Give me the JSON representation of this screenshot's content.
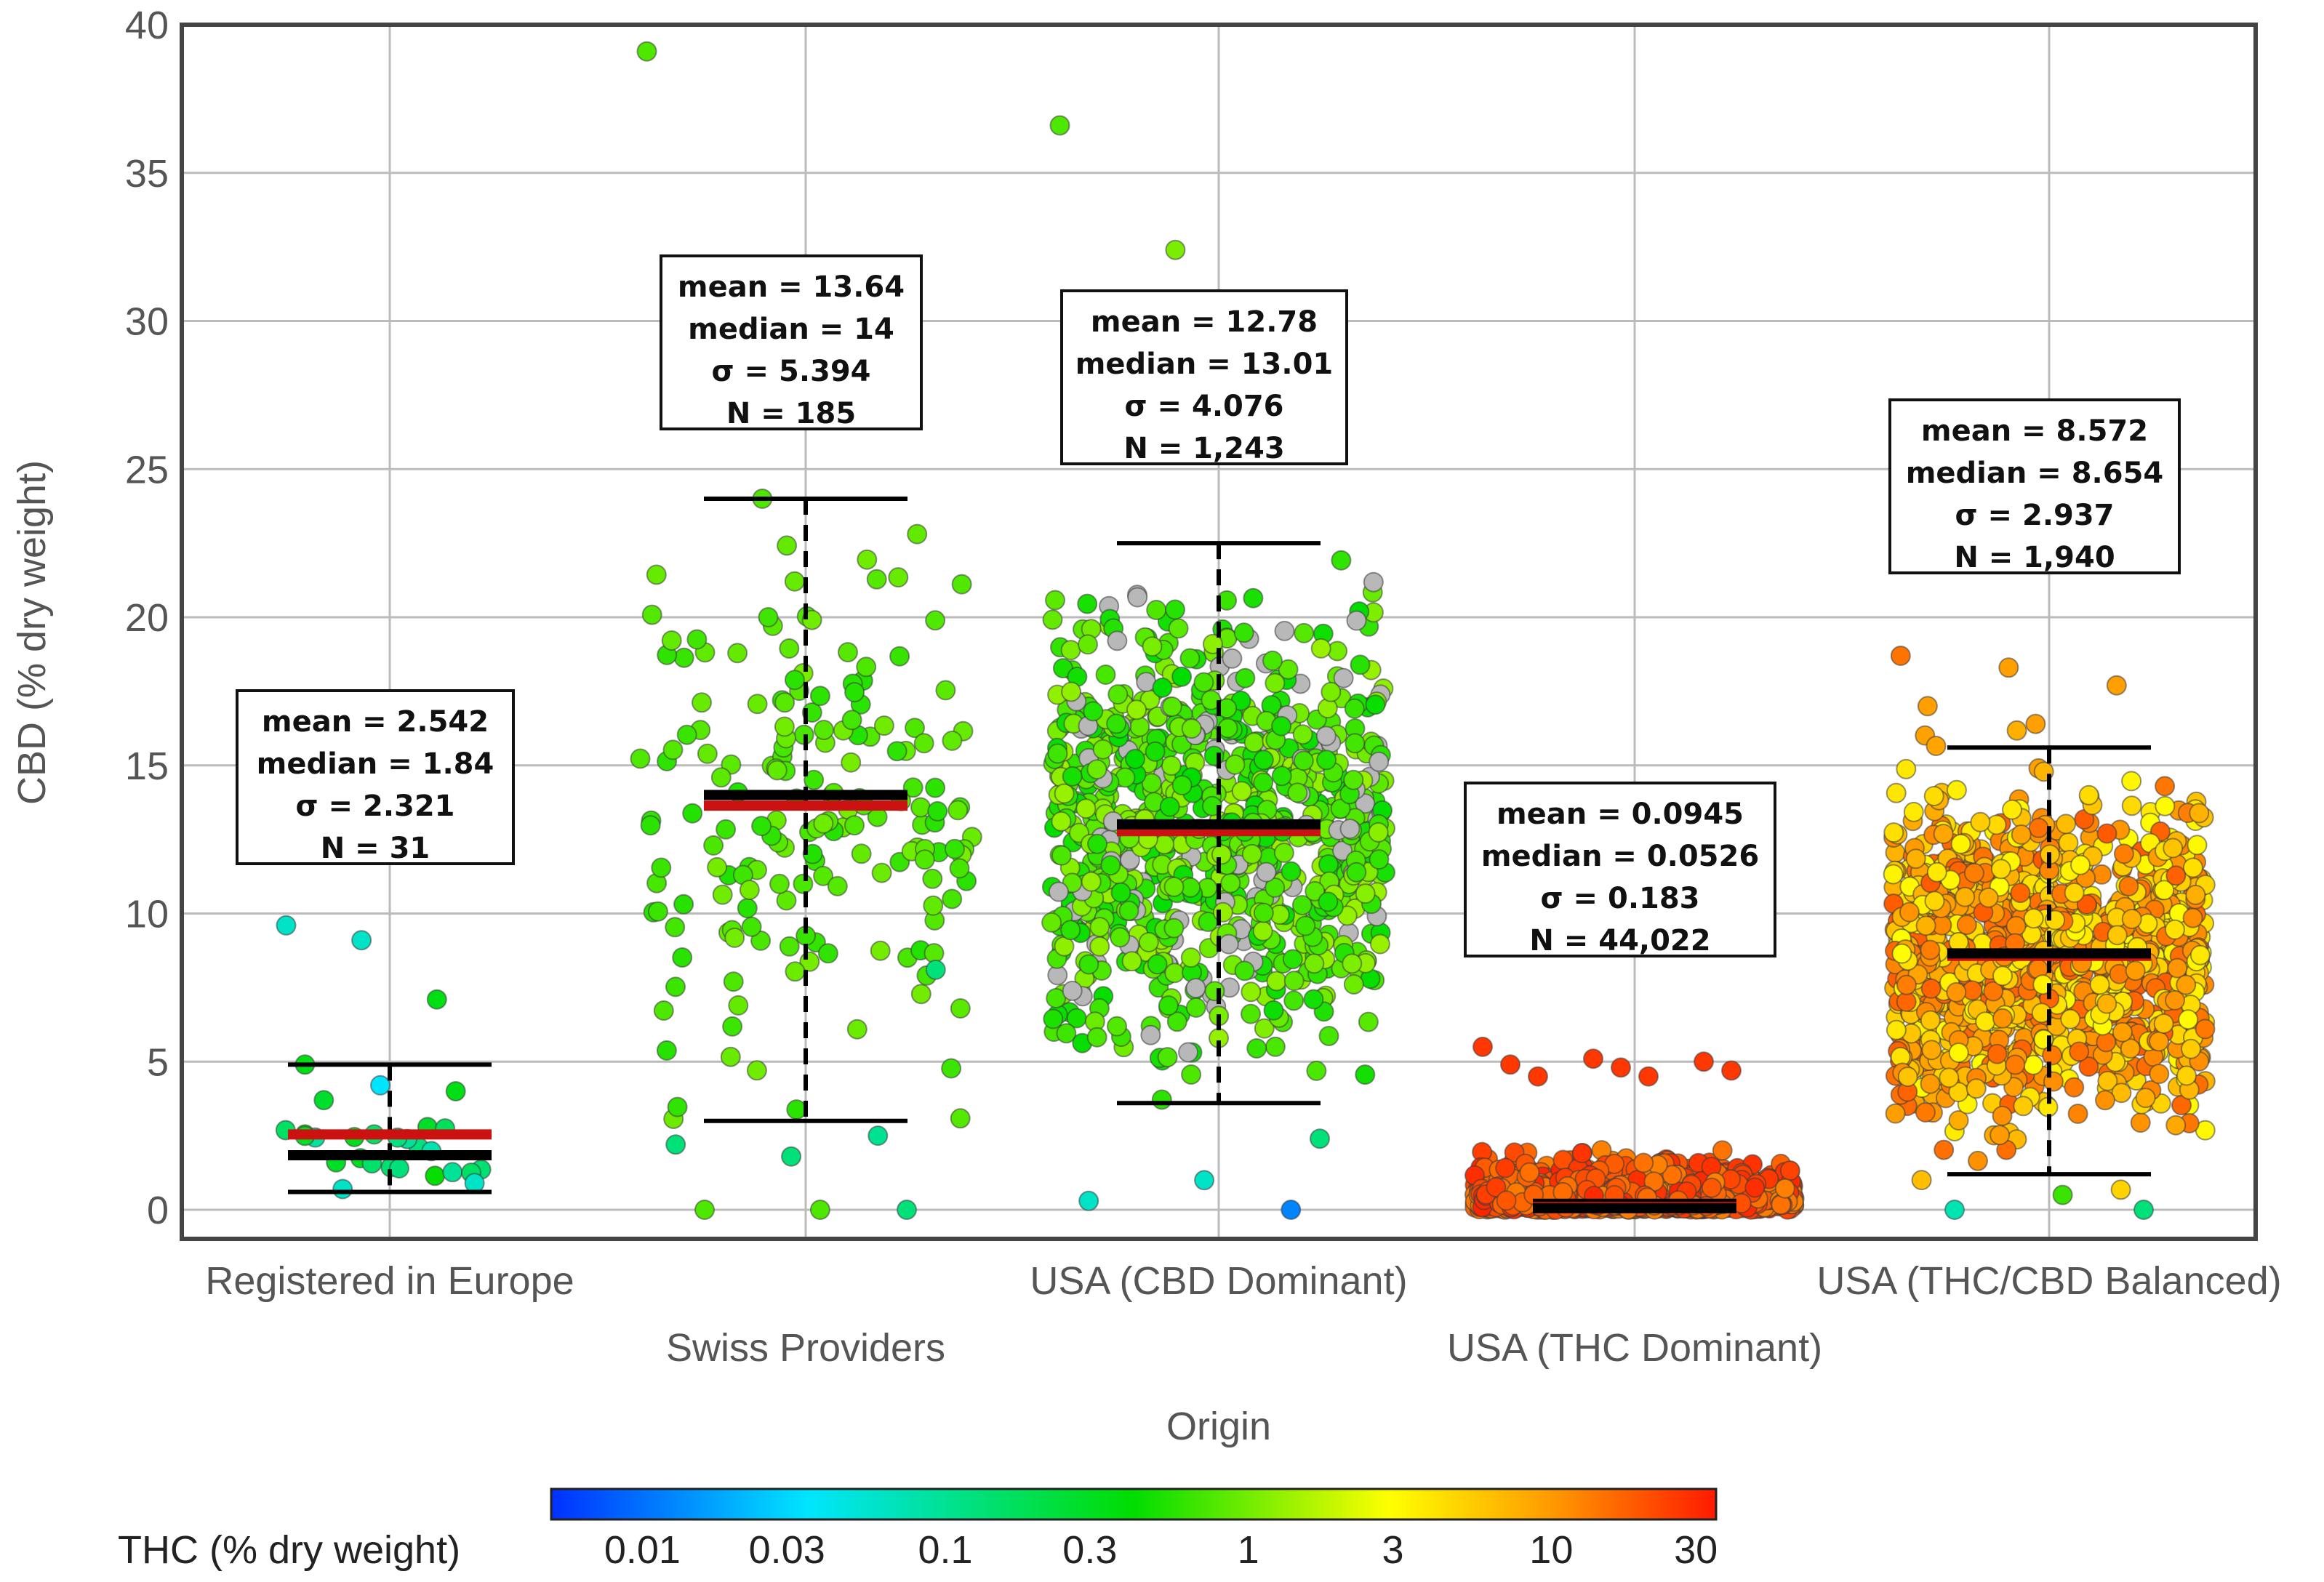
{
  "chart_data": {
    "type": "scatter",
    "subtype": "jittered-strip-plot-with-mean-median-and-whiskers",
    "xlabel": "Origin",
    "ylabel": "CBD (% dry weight)",
    "ylim": [
      0,
      40
    ],
    "yticks": [
      0,
      5,
      10,
      15,
      20,
      25,
      30,
      35,
      40
    ],
    "grid": true,
    "colorbar": {
      "label": "THC (% dry weight)",
      "scale": "log",
      "ticks": [
        "0.01",
        "0.03",
        "0.1",
        "0.3",
        "1",
        "3",
        "10",
        "30"
      ],
      "tick_values": [
        0.01,
        0.03,
        0.1,
        0.3,
        1,
        3,
        10,
        30
      ],
      "range": [
        0.005,
        35
      ],
      "colors": [
        "#0040ff",
        "#00e5ff",
        "#00e000",
        "#ffff00",
        "#ff8c00",
        "#ff0000"
      ]
    },
    "groups": [
      {
        "name": "Registered in Europe",
        "mean": 2.542,
        "median": 1.84,
        "sigma": 2.321,
        "n": 31,
        "whisker_low": 0.6,
        "whisker_high": 4.9,
        "stats": {
          "mean": "mean = 2.542",
          "median": "median = 1.84",
          "sigma": "σ = 2.321",
          "n": "N = 31"
        },
        "outliers": [
          {
            "cbd": 9.6,
            "thc": 0.05
          },
          {
            "cbd": 9.1,
            "thc": 0.05
          },
          {
            "cbd": 7.1,
            "thc": 0.25
          },
          {
            "cbd": 4.9,
            "thc": 0.25
          },
          {
            "cbd": 4.2,
            "thc": 0.03
          },
          {
            "cbd": 4.0,
            "thc": 0.25
          },
          {
            "cbd": 3.7,
            "thc": 0.2
          },
          {
            "cbd": 1.4,
            "thc": 0.1
          },
          {
            "cbd": 0.9,
            "thc": 0.05
          },
          {
            "cbd": 0.7,
            "thc": 0.05
          }
        ],
        "cloud": {
          "count": 20,
          "y_range": [
            0.8,
            2.8
          ],
          "thc_range": [
            0.05,
            0.4
          ]
        }
      },
      {
        "name": "Swiss Providers",
        "mean": 13.64,
        "median": 14,
        "sigma": 5.394,
        "n": 185,
        "whisker_low": 3.0,
        "whisker_high": 24.0,
        "stats": {
          "mean": "mean = 13.64",
          "median": "median = 14",
          "sigma": "σ = 5.394",
          "n": "N = 185"
        },
        "outliers": [
          {
            "cbd": 39.1,
            "thc": 0.6
          },
          {
            "cbd": 24.0,
            "thc": 0.6
          },
          {
            "cbd": 2.5,
            "thc": 0.08
          },
          {
            "cbd": 2.2,
            "thc": 0.1
          },
          {
            "cbd": 1.8,
            "thc": 0.1
          },
          {
            "cbd": 0.0,
            "thc": 0.1
          },
          {
            "cbd": 0.0,
            "thc": 0.6
          },
          {
            "cbd": 0.0,
            "thc": 0.6
          },
          {
            "cbd": 8.1,
            "thc": 0.1
          },
          {
            "cbd": 7.7,
            "thc": 0.6
          }
        ],
        "cloud": {
          "count": 175,
          "y_range": [
            3.0,
            23.0
          ],
          "thc_range": [
            0.4,
            0.9
          ]
        }
      },
      {
        "name": "USA (CBD Dominant)",
        "mean": 12.78,
        "median": 13.01,
        "sigma": 4.076,
        "n": "1,243",
        "whisker_low": 3.6,
        "whisker_high": 22.5,
        "stats": {
          "mean": "mean = 12.78",
          "median": "median = 13.01",
          "sigma": "σ = 4.076",
          "n": "N = 1,243"
        },
        "outliers": [
          {
            "cbd": 36.6,
            "thc": 0.6
          },
          {
            "cbd": 32.4,
            "thc": 0.9
          },
          {
            "cbd": 0.0,
            "thc": 0.012
          },
          {
            "cbd": 0.3,
            "thc": 0.05
          },
          {
            "cbd": 1.0,
            "thc": 0.05
          },
          {
            "cbd": 2.4,
            "thc": 0.1
          }
        ],
        "cloud": {
          "count": 900,
          "y_range": [
            0.2,
            22.0
          ],
          "thc_range": [
            0.3,
            1.2
          ]
        }
      },
      {
        "name": "USA (THC Dominant)",
        "mean": 0.0945,
        "median": 0.0526,
        "sigma": 0.183,
        "n": "44,022",
        "whisker_low": 0.0,
        "whisker_high": 0.3,
        "stats": {
          "mean": "mean = 0.0945",
          "median": "median = 0.0526",
          "sigma": "σ = 0.183",
          "n": "N = 44,022"
        },
        "outliers": [
          {
            "cbd": 5.5,
            "thc": 25
          },
          {
            "cbd": 5.1,
            "thc": 25
          },
          {
            "cbd": 5.0,
            "thc": 25
          },
          {
            "cbd": 4.9,
            "thc": 25
          },
          {
            "cbd": 4.8,
            "thc": 25
          },
          {
            "cbd": 4.7,
            "thc": 25
          },
          {
            "cbd": 4.5,
            "thc": 25
          },
          {
            "cbd": 4.5,
            "thc": 25
          }
        ],
        "cloud": {
          "count": 1200,
          "y_range": [
            0.0,
            2.8
          ],
          "thc_range": [
            12,
            30
          ]
        }
      },
      {
        "name": "USA (THC/CBD Balanced)",
        "mean": 8.572,
        "median": 8.654,
        "sigma": 2.937,
        "n": "1,940",
        "whisker_low": 1.2,
        "whisker_high": 15.6,
        "stats": {
          "mean": "mean = 8.572",
          "median": "median = 8.654",
          "sigma": "σ = 2.937",
          "n": "N = 1,940"
        },
        "outliers": [
          {
            "cbd": 18.7,
            "thc": 14
          },
          {
            "cbd": 18.3,
            "thc": 9
          },
          {
            "cbd": 17.7,
            "thc": 9
          },
          {
            "cbd": 17.0,
            "thc": 9
          },
          {
            "cbd": 16.4,
            "thc": 9
          },
          {
            "cbd": 0.0,
            "thc": 0.1
          },
          {
            "cbd": 0.0,
            "thc": 0.06
          },
          {
            "cbd": 0.5,
            "thc": 0.5
          }
        ],
        "cloud": {
          "count": 1300,
          "y_range": [
            0.0,
            16.5
          ],
          "thc_range": [
            3,
            18
          ]
        }
      }
    ]
  }
}
